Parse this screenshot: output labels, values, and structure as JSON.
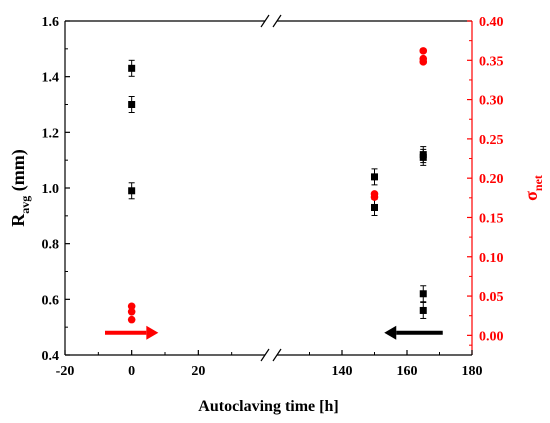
{
  "chart_data": {
    "type": "scatter",
    "xlabel": "Autoclaving time [h]",
    "ylabel_left": {
      "main": "R",
      "sub": "avg",
      "rest": " (mm)"
    },
    "ylabel_right": {
      "main": "σ",
      "sub": "net"
    },
    "x_segments": [
      {
        "range": [
          -20,
          40
        ],
        "ticks": [
          "-20",
          "0",
          "20"
        ]
      },
      {
        "range": [
          120,
          180
        ],
        "ticks": [
          "140",
          "160",
          "180"
        ]
      }
    ],
    "y_left": {
      "range": [
        0.4,
        1.6
      ],
      "ticks": [
        "0.4",
        "0.6",
        "0.8",
        "1.0",
        "1.2",
        "1.4",
        "1.6"
      ]
    },
    "y_right": {
      "range": [
        -0.025,
        0.4
      ],
      "ticks": [
        "0.00",
        "0.05",
        "0.10",
        "0.15",
        "0.20",
        "0.25",
        "0.30",
        "0.35",
        "0.40"
      ]
    },
    "series": [
      {
        "axis": "left",
        "color": "#000000",
        "marker": "square",
        "error_bars": true,
        "points": [
          {
            "x": 0,
            "y": 1.43
          },
          {
            "x": 0,
            "y": 1.3
          },
          {
            "x": 0,
            "y": 0.99
          },
          {
            "x": 150,
            "y": 1.04
          },
          {
            "x": 150,
            "y": 0.93
          },
          {
            "x": 165,
            "y": 1.12
          },
          {
            "x": 165,
            "y": 1.11
          },
          {
            "x": 165,
            "y": 0.62
          },
          {
            "x": 165,
            "y": 0.56
          }
        ]
      },
      {
        "axis": "right",
        "color": "#ff0000",
        "marker": "circle",
        "error_bars": false,
        "points": [
          {
            "x": 0,
            "y": 0.037
          },
          {
            "x": 0,
            "y": 0.03
          },
          {
            "x": 0,
            "y": 0.02
          },
          {
            "x": 150,
            "y": 0.18
          },
          {
            "x": 150,
            "y": 0.176
          },
          {
            "x": 165,
            "y": 0.362
          },
          {
            "x": 165,
            "y": 0.352
          },
          {
            "x": 165,
            "y": 0.348
          }
        ]
      }
    ],
    "arrows": [
      {
        "color": "#ff0000",
        "direction": "right",
        "x_from": -8,
        "x_to": 8,
        "y_left": 0.48
      },
      {
        "color": "#000000",
        "direction": "left",
        "x_from": 171,
        "x_to": 153,
        "y_left": 0.48
      }
    ],
    "colors": {
      "left_axis": "#000000",
      "right_axis": "#ff0000"
    }
  }
}
